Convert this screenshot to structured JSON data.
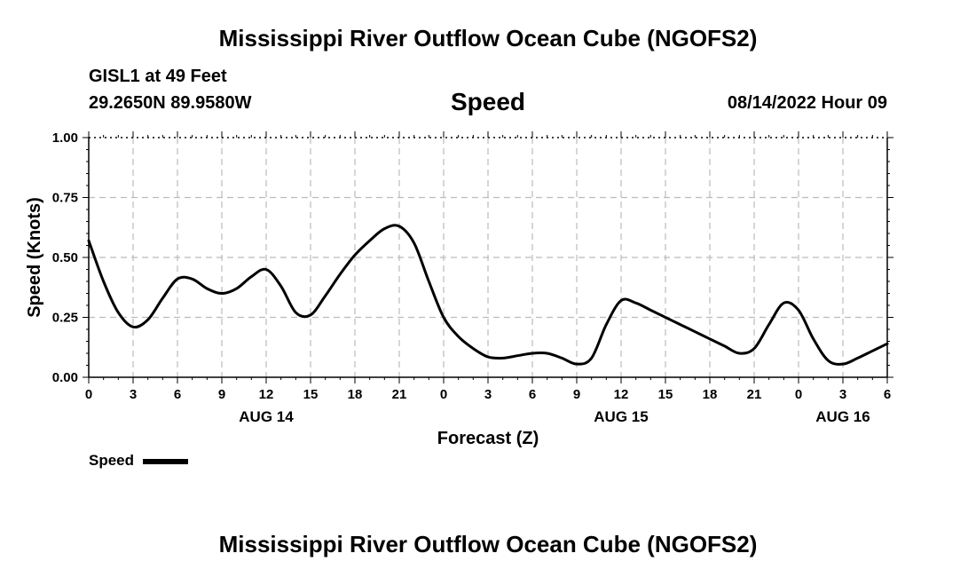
{
  "header": {
    "title": "Mississippi River Outflow Ocean Cube (NGOFS2)",
    "station": "GISL1 at 49 Feet",
    "coordinates": "29.2650N  89.9580W",
    "variable": "Speed",
    "datetime": "08/14/2022 Hour 09"
  },
  "footer": {
    "title": "Mississippi River Outflow Ocean Cube (NGOFS2)"
  },
  "legend": {
    "label": "Speed"
  },
  "colors": {
    "line": "#000000",
    "grid": "#bbbbbb"
  },
  "chart_data": {
    "type": "line",
    "title": "Speed",
    "xlabel": "Forecast (Z)",
    "ylabel": "Speed (Knots)",
    "xlim": [
      0,
      54
    ],
    "ylim": [
      0,
      1
    ],
    "grid": true,
    "legend_position": "bottom-left",
    "x_ticks": [
      0,
      3,
      6,
      9,
      12,
      15,
      18,
      21,
      24,
      27,
      30,
      33,
      36,
      39,
      42,
      45,
      48,
      51,
      54
    ],
    "x_tick_labels": [
      "0",
      "3",
      "6",
      "9",
      "12",
      "15",
      "18",
      "21",
      "0",
      "3",
      "6",
      "9",
      "12",
      "15",
      "18",
      "21",
      "0",
      "3",
      "6"
    ],
    "y_ticks": [
      0,
      0.25,
      0.5,
      0.75,
      1.0
    ],
    "y_tick_labels": [
      "0.00",
      "0.25",
      "0.50",
      "0.75",
      "1.00"
    ],
    "date_labels": [
      {
        "x": 12,
        "label": "AUG 14"
      },
      {
        "x": 36,
        "label": "AUG 15"
      },
      {
        "x": 51,
        "label": "AUG 16"
      }
    ],
    "series": [
      {
        "name": "Speed",
        "x": [
          0,
          1,
          2,
          3,
          4,
          5,
          6,
          7,
          8,
          9,
          10,
          11,
          12,
          13,
          14,
          15,
          16,
          17,
          18,
          19,
          20,
          21,
          22,
          23,
          24,
          25,
          26,
          27,
          28,
          29,
          30,
          31,
          32,
          33,
          34,
          35,
          36,
          37,
          38,
          39,
          40,
          41,
          42,
          43,
          44,
          45,
          46,
          47,
          48,
          49,
          50,
          51,
          52,
          53,
          54
        ],
        "values": [
          0.57,
          0.4,
          0.27,
          0.21,
          0.24,
          0.33,
          0.41,
          0.41,
          0.37,
          0.35,
          0.37,
          0.42,
          0.45,
          0.38,
          0.27,
          0.26,
          0.34,
          0.43,
          0.51,
          0.57,
          0.62,
          0.63,
          0.56,
          0.4,
          0.25,
          0.17,
          0.12,
          0.085,
          0.08,
          0.09,
          0.1,
          0.1,
          0.08,
          0.055,
          0.08,
          0.22,
          0.32,
          0.31,
          0.28,
          0.25,
          0.22,
          0.19,
          0.16,
          0.13,
          0.1,
          0.12,
          0.22,
          0.31,
          0.28,
          0.16,
          0.07,
          0.055,
          0.08,
          0.11,
          0.14
        ]
      }
    ]
  }
}
